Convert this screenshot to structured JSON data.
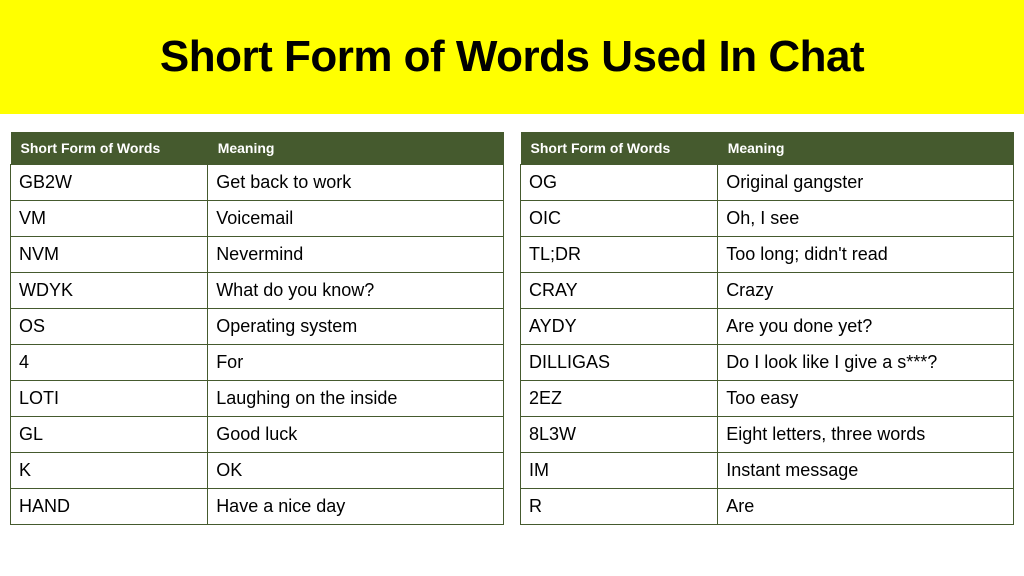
{
  "banner": {
    "title": "Short Form of Words Used In Chat",
    "bg_color": "#ffff00",
    "title_color": "#000000"
  },
  "tables": {
    "header_bg": "#455a2e",
    "header_fg": "#ffffff",
    "border_color": "#455a2e",
    "cell_bg": "#ffffff",
    "columns": [
      "Short Form of Words",
      "Meaning"
    ],
    "left_rows": [
      [
        "GB2W",
        "Get back to work"
      ],
      [
        "VM",
        "Voicemail"
      ],
      [
        "NVM",
        "Nevermind"
      ],
      [
        "WDYK",
        "What do you know?"
      ],
      [
        "OS",
        "Operating system"
      ],
      [
        "4",
        "For"
      ],
      [
        "LOTI",
        "Laughing on the inside"
      ],
      [
        "GL",
        "Good luck"
      ],
      [
        "K",
        "OK"
      ],
      [
        "HAND",
        "Have a nice day"
      ]
    ],
    "right_rows": [
      [
        "OG",
        "Original gangster"
      ],
      [
        "OIC",
        "Oh, I see"
      ],
      [
        "TL;DR",
        "Too long; didn't read"
      ],
      [
        "CRAY",
        "Crazy"
      ],
      [
        "AYDY",
        "Are you done yet?"
      ],
      [
        "DILLIGAS",
        "Do I look like I give a s***?"
      ],
      [
        "2EZ",
        "Too easy"
      ],
      [
        "8L3W",
        "Eight letters, three words"
      ],
      [
        "IM",
        "Instant message"
      ],
      [
        "R",
        "Are"
      ]
    ]
  }
}
